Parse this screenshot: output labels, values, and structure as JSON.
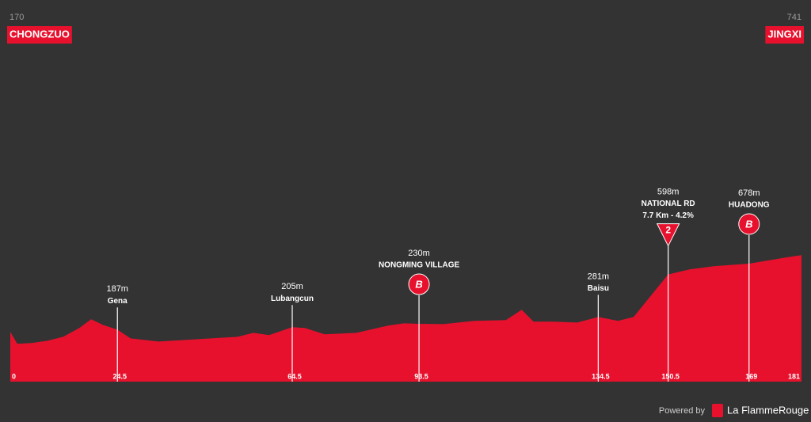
{
  "chart_data": {
    "type": "area",
    "color": "#e8112d",
    "start": {
      "elevation": 170,
      "name": "CHONGZUO"
    },
    "finish": {
      "elevation": 741,
      "name": "JINGXI"
    },
    "x": [
      0,
      1.6,
      4.9,
      8.5,
      12.1,
      15.8,
      18.5,
      21.2,
      24.5,
      27.5,
      33.9,
      43,
      52,
      55.6,
      59.2,
      64.5,
      67.4,
      71.9,
      79.2,
      86.4,
      90,
      93.5,
      99.1,
      106.2,
      113.4,
      117,
      119.7,
      124.3,
      129.7,
      134.5,
      139,
      142.6,
      150.5,
      155.4,
      160.9,
      169,
      172,
      177.5,
      181
    ],
    "values": [
      170,
      81,
      87,
      104,
      134,
      199,
      264,
      222,
      187,
      122,
      98,
      116,
      134,
      163,
      146,
      205,
      199,
      152,
      163,
      217,
      234,
      230,
      228,
      252,
      258,
      335,
      246,
      246,
      240,
      281,
      252,
      281,
      598,
      635,
      659,
      678,
      694,
      724,
      741
    ],
    "xlim": [
      0,
      181
    ],
    "ylim": [
      -200,
      2640
    ],
    "xticks": [
      0,
      24.5,
      64.5,
      93.5,
      134.5,
      150.5,
      169,
      181
    ],
    "markers": [
      {
        "km": 24.5,
        "elevation": 187,
        "elevation_label": "187m",
        "name": "Gena"
      },
      {
        "km": 64.5,
        "elevation": 205,
        "elevation_label": "205m",
        "name": "Lubangcun"
      },
      {
        "km": 93.5,
        "elevation": 230,
        "elevation_label": "230m",
        "name": "NONGMING VILLAGE",
        "icon": "B"
      },
      {
        "km": 134.5,
        "elevation": 281,
        "elevation_label": "281m",
        "name": "Baisu"
      },
      {
        "km": 150.5,
        "elevation": 598,
        "elevation_label": "598m",
        "name": "NATIONAL RD",
        "detail": "7.7 Km - 4.2%",
        "icon": "2"
      },
      {
        "km": 169,
        "elevation": 678,
        "elevation_label": "678m",
        "name": "HUADONG",
        "icon": "B"
      }
    ],
    "footer": {
      "powered": "Powered by",
      "brand": "La FlammeRouge"
    }
  }
}
